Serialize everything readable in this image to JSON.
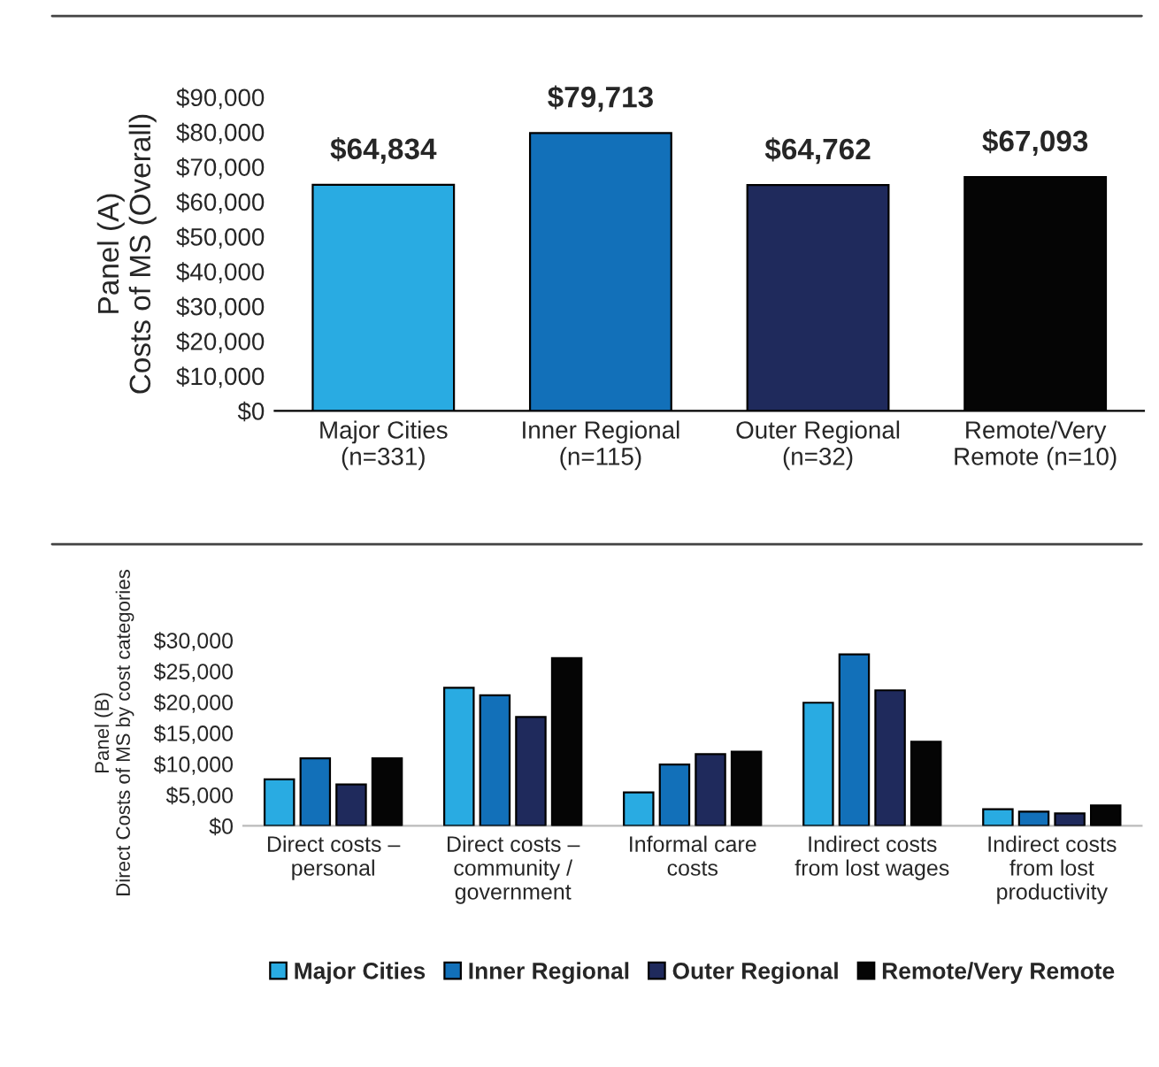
{
  "chart_data": [
    {
      "type": "bar",
      "ylabel": "Panel (A)\nCosts of MS (Overall)",
      "categories": [
        "Major Cities\n(n=331)",
        "Inner Regional\n(n=115)",
        "Outer Regional\n(n=32)",
        "Remote/Very\nRemote (n=10)"
      ],
      "values": [
        64834,
        79713,
        64762,
        67093
      ],
      "colors": [
        "#29abe2",
        "#1270b9",
        "#1f2a5c",
        "#050505"
      ],
      "value_labels": [
        "$64,834",
        "$79,713",
        "$64,762",
        "$67,093"
      ],
      "ylim": [
        0,
        90000
      ],
      "yticks": [
        {
          "value": 0,
          "label": "$0"
        },
        {
          "value": 10000,
          "label": "$10,000"
        },
        {
          "value": 20000,
          "label": "$20,000"
        },
        {
          "value": 30000,
          "label": "$30,000"
        },
        {
          "value": 40000,
          "label": "$40,000"
        },
        {
          "value": 50000,
          "label": "$50,000"
        },
        {
          "value": 60000,
          "label": "$60,000"
        },
        {
          "value": 70000,
          "label": "$70,000"
        },
        {
          "value": 80000,
          "label": "$80,000"
        },
        {
          "value": 90000,
          "label": "$90,000"
        }
      ],
      "grid": false,
      "legend": false
    },
    {
      "type": "bar",
      "ylabel": "Panel (B)\nDirect Costs of MS by cost categories",
      "categories": [
        "Direct costs –\npersonal",
        "Direct costs –\ncommunity /\ngovernment",
        "Informal care\ncosts",
        "Indirect costs\nfrom lost wages",
        "Indirect costs\nfrom lost\nproductivity"
      ],
      "series": [
        {
          "name": "Major Cities",
          "color": "#29abe2",
          "values": [
            7500,
            22300,
            5400,
            19900,
            2700
          ]
        },
        {
          "name": "Inner Regional",
          "color": "#1270b9",
          "values": [
            10900,
            21100,
            9900,
            27700,
            2300
          ]
        },
        {
          "name": "Outer Regional",
          "color": "#1f2a5c",
          "values": [
            6700,
            17600,
            11600,
            21900,
            2000
          ]
        },
        {
          "name": "Remote/Very Remote",
          "color": "#050505",
          "values": [
            10900,
            27100,
            12000,
            13600,
            3300
          ]
        }
      ],
      "ylim": [
        0,
        30000
      ],
      "yticks": [
        {
          "value": 0,
          "label": "$0"
        },
        {
          "value": 5000,
          "label": "$5,000"
        },
        {
          "value": 10000,
          "label": "$10,000"
        },
        {
          "value": 15000,
          "label": "$15,000"
        },
        {
          "value": 20000,
          "label": "$20,000"
        },
        {
          "value": 25000,
          "label": "$25,000"
        },
        {
          "value": 30000,
          "label": "$30,000"
        }
      ],
      "grid": false,
      "legend": "bottom"
    }
  ]
}
